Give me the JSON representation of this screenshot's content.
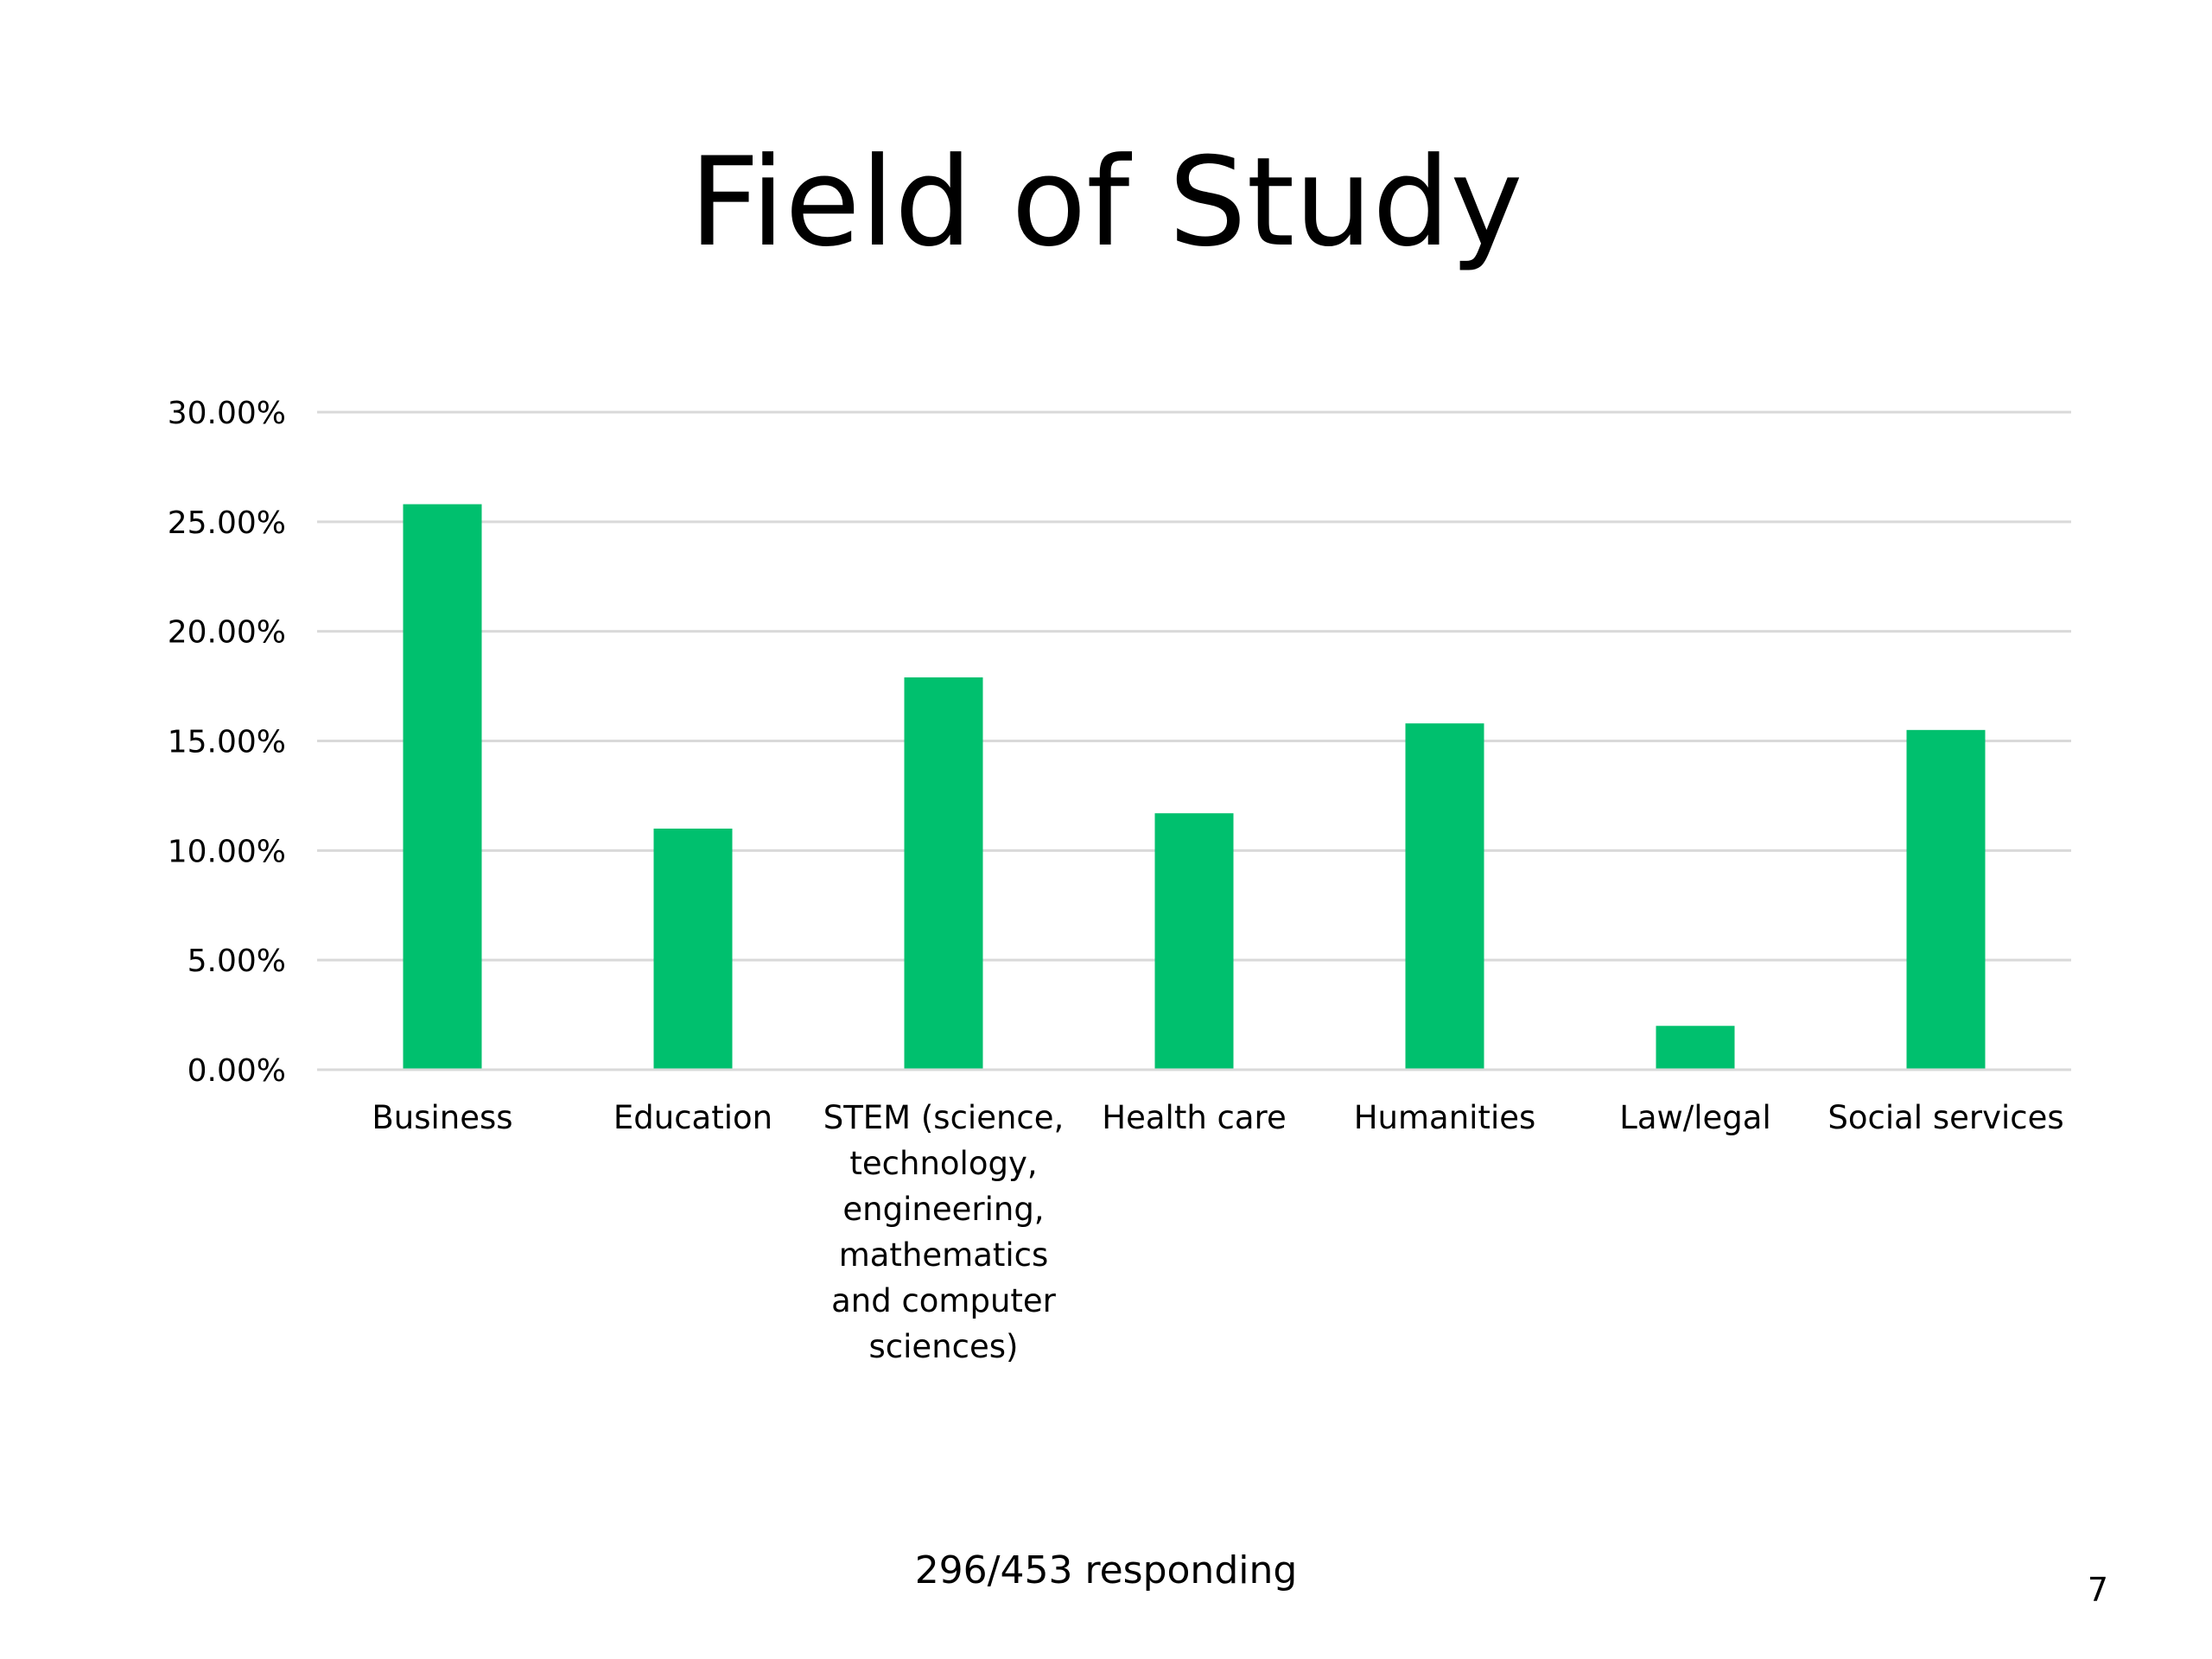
{
  "slide": {
    "title": "Field of Study",
    "footnote": "296/453 responding",
    "page_number": "7"
  },
  "colors": {
    "bar": "#00c06e",
    "grid": "#d9d9d9",
    "text": "#000000"
  },
  "chart_data": {
    "type": "bar",
    "title": "Field of Study",
    "xlabel": "",
    "ylabel": "",
    "categories": [
      "Business",
      "Education",
      "STEM (science, technology, engineering, mathematics and computer sciences)",
      "Health care",
      "Humanities",
      "Law/legal",
      "Social services"
    ],
    "category_label_lines": [
      [
        "Business"
      ],
      [
        "Education"
      ],
      [
        "STEM (science,",
        "technology,",
        "engineering,",
        "mathematics",
        "and computer",
        "sciences)"
      ],
      [
        "Health care"
      ],
      [
        "Humanities"
      ],
      [
        "Law/legal"
      ],
      [
        "Social services"
      ]
    ],
    "series": [
      {
        "values": [
          25.8,
          11.0,
          17.9,
          11.7,
          15.8,
          2.0,
          15.5
        ]
      }
    ],
    "ylim": [
      0,
      30
    ],
    "yticks": [
      0,
      5,
      10,
      15,
      20,
      25,
      30
    ],
    "ytick_labels": [
      "0.00%",
      "5.00%",
      "10.00%",
      "15.00%",
      "20.00%",
      "25.00%",
      "30.00%"
    ],
    "grid": true,
    "legend": "none"
  }
}
